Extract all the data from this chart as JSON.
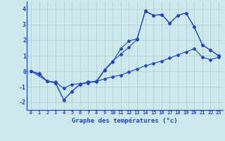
{
  "xlabel": "Graphe des températures (°c)",
  "background_color": "#cce8ea",
  "line_color": "#2244cc",
  "grid_color": "#aacccc",
  "xmin": -0.5,
  "xmax": 23.5,
  "ymin": -2.5,
  "ymax": 4.5,
  "yticks": [
    -2,
    -1,
    0,
    1,
    2,
    3,
    4
  ],
  "xticks": [
    0,
    1,
    2,
    3,
    4,
    5,
    6,
    7,
    8,
    9,
    10,
    11,
    12,
    13,
    14,
    15,
    16,
    17,
    18,
    19,
    20,
    21,
    22,
    23
  ],
  "series1_x": [
    0,
    1,
    2,
    3,
    4,
    5,
    6,
    7,
    8,
    9,
    10,
    11,
    12,
    13,
    14,
    15,
    16,
    17,
    18,
    19,
    20,
    21,
    22,
    23
  ],
  "series1_y": [
    0.0,
    -0.2,
    -0.65,
    -0.7,
    -1.1,
    -0.85,
    -0.8,
    -0.75,
    -0.65,
    -0.5,
    -0.35,
    -0.25,
    -0.05,
    0.15,
    0.35,
    0.5,
    0.65,
    0.85,
    1.05,
    1.25,
    1.45,
    0.9,
    0.75,
    0.9
  ],
  "series2_x": [
    0,
    1,
    2,
    3,
    4,
    5,
    6,
    7,
    8,
    9,
    10,
    11,
    12,
    13,
    14,
    15,
    16,
    17,
    18,
    19,
    20,
    21,
    22,
    23
  ],
  "series2_y": [
    0.0,
    -0.15,
    -0.65,
    -0.75,
    -1.85,
    -1.3,
    -0.85,
    -0.7,
    -0.65,
    0.1,
    0.65,
    1.1,
    1.55,
    2.05,
    3.9,
    3.6,
    3.65,
    3.1,
    3.6,
    3.75,
    2.85,
    1.7,
    1.35,
    1.0
  ],
  "series3_x": [
    0,
    2,
    3,
    4,
    5,
    6,
    7,
    8,
    9,
    10,
    11,
    12,
    13,
    14,
    15,
    16,
    17,
    18,
    19,
    20,
    21,
    22,
    23
  ],
  "series3_y": [
    0.0,
    -0.65,
    -0.75,
    -1.85,
    -1.3,
    -0.85,
    -0.7,
    -0.7,
    0.05,
    0.6,
    1.45,
    1.95,
    2.1,
    3.85,
    3.6,
    3.65,
    3.1,
    3.6,
    3.75,
    2.85,
    1.7,
    1.35,
    1.0
  ],
  "xlabel_fontsize": 6.5,
  "xtick_fontsize": 5.0,
  "ytick_fontsize": 6.0,
  "linewidth": 0.8,
  "markersize": 2.0
}
